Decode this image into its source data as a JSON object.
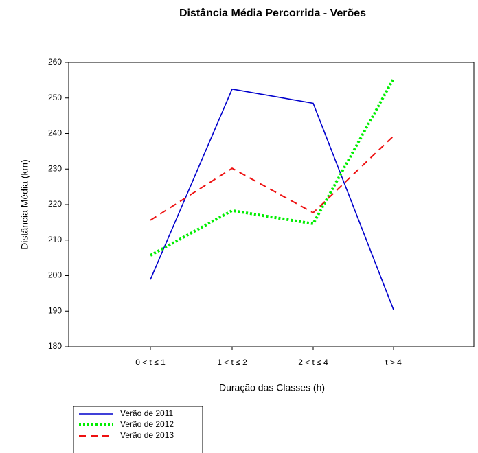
{
  "chart_data": {
    "type": "line",
    "title": "Distância Média Percorrida - Verões",
    "x_label": "Duração das Classes (h)",
    "y_label": "Distância Média (km)",
    "categories": [
      "0 < t ≤ 1",
      "1 < t ≤ 2",
      "2 < t ≤ 4",
      "t > 4"
    ],
    "series": [
      {
        "name": "Verão de 2011",
        "color": "#0000cc",
        "linestyle": "solid",
        "values": [
          198.9,
          252.5,
          248.5,
          190.4
        ]
      },
      {
        "name": "Verão de 2012",
        "color": "#00ee00",
        "linestyle": "dotted",
        "values": [
          205.7,
          218.3,
          214.6,
          255.4
        ]
      },
      {
        "name": "Verão de 2013",
        "color": "#ee1111",
        "linestyle": "dashed",
        "values": [
          215.6,
          230.2,
          217.7,
          239.3
        ]
      }
    ],
    "ylim": [
      180,
      260
    ],
    "yticks": [
      180,
      190,
      200,
      210,
      220,
      230,
      240,
      250,
      260
    ],
    "grid": false,
    "legend": "bottom-left"
  }
}
